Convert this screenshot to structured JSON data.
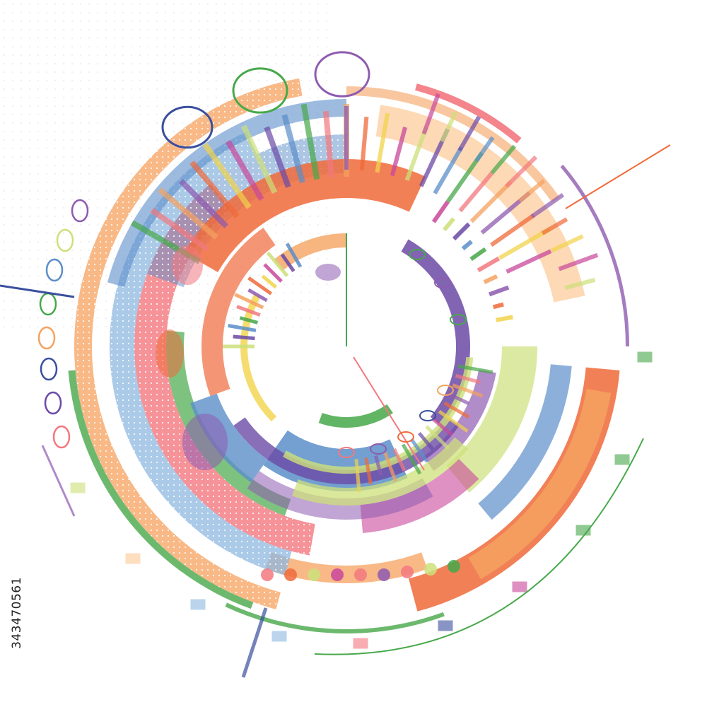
{
  "image": {
    "stock_id": "343470561",
    "palette": {
      "orange": "#f5a25f",
      "red_orange": "#f06a3a",
      "blue": "#5b8ec9",
      "sky_blue": "#8db8e0",
      "pink": "#f3787f",
      "purple": "#6b4aa6",
      "violet": "#8e5bb0",
      "magenta": "#c9479b",
      "green": "#47a84a",
      "lime": "#cde07a",
      "yellow": "#f2d34b",
      "peach": "#fcc995",
      "navy": "#3a4f9e"
    }
  }
}
